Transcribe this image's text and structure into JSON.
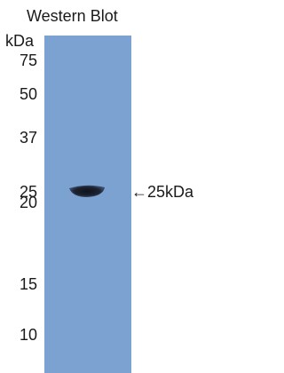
{
  "header": {
    "title": "Western Blot",
    "unit": "kDa"
  },
  "markers": [
    75,
    50,
    37,
    25,
    20,
    15,
    10
  ],
  "annotation": "←25kDa"
}
